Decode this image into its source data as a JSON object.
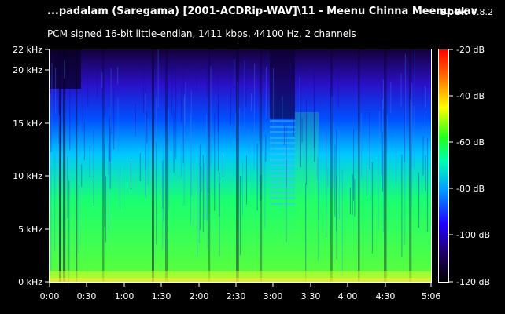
{
  "header": {
    "file_title": "...padalam (Saregama) [2001-ACDRip-WAV]\\11 - Meenu Chinna Meenu.wav",
    "app_name": "spek",
    "app_version": "0.8.2",
    "audio_info": "PCM signed 16-bit little-endian, 1411 kbps, 44100 Hz, 2 channels"
  },
  "frequency_axis": {
    "ticks": [
      "22 kHz",
      "20 kHz",
      "15 kHz",
      "10 kHz",
      "5 kHz",
      "0 kHz"
    ]
  },
  "time_axis": {
    "ticks": [
      "0:00",
      "0:30",
      "1:00",
      "1:30",
      "2:00",
      "2:30",
      "3:00",
      "3:30",
      "4:00",
      "4:30",
      "5:06"
    ]
  },
  "level_scale": {
    "ticks": [
      "-20 dB",
      "-40 dB",
      "-60 dB",
      "-80 dB",
      "-100 dB",
      "-120 dB"
    ]
  },
  "colors": {
    "background": "#000000",
    "text": "#ffffff"
  }
}
